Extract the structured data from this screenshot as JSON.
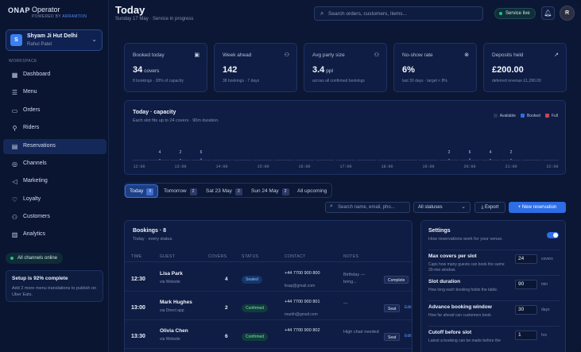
{
  "brand": {
    "logo": "ONAP",
    "name": "Operator",
    "powered": "POWERED BY",
    "powered_by": "ARRAMTON"
  },
  "store": {
    "initial": "S",
    "name": "Shyam Ji Hut Delhi",
    "owner": "Rahul Patel"
  },
  "sidebar": {
    "heading": "WORKSPACE",
    "items": [
      {
        "label": "Dashboard",
        "icon": "dashboard-icon",
        "glyph": "▦"
      },
      {
        "label": "Menu",
        "icon": "menu-icon",
        "glyph": "☰"
      },
      {
        "label": "Orders",
        "icon": "orders-icon",
        "glyph": "▭"
      },
      {
        "label": "Riders",
        "icon": "bike-icon",
        "glyph": "⚲"
      },
      {
        "label": "Reservations",
        "icon": "calendar-icon",
        "glyph": "▤"
      },
      {
        "label": "Channels",
        "icon": "channels-icon",
        "glyph": "◎"
      },
      {
        "label": "Marketing",
        "icon": "megaphone-icon",
        "glyph": "◁"
      },
      {
        "label": "Loyalty",
        "icon": "heart-icon",
        "glyph": "♡"
      },
      {
        "label": "Customers",
        "icon": "users-icon",
        "glyph": "⚇"
      },
      {
        "label": "Analytics",
        "icon": "analytics-icon",
        "glyph": "▥"
      }
    ],
    "active_index": 4,
    "online_badge": "All channels online",
    "setup_title": "Setup is 92% complete",
    "setup_text": "Add 2 more menu translations to publish on Uber Eats."
  },
  "header": {
    "title": "Today",
    "subtitle": "Sunday 17 May · Service in progress",
    "search_placeholder": "Search orders, customers, items...",
    "live_label": "Service live",
    "user_initial": "R"
  },
  "stats": [
    {
      "label": "Booked today",
      "icon": "calendar-check-icon",
      "glyph": "▣",
      "value": "34",
      "unit": "covers",
      "note": "8 bookings · 28% of capacity"
    },
    {
      "label": "Week ahead",
      "icon": "users-icon",
      "glyph": "⚇",
      "value": "142",
      "unit": "",
      "note": "38 bookings · 7 days"
    },
    {
      "label": "Avg party size",
      "icon": "users-icon",
      "glyph": "⚇",
      "value": "3.4",
      "unit": "ppl",
      "note": "across all confirmed bookings"
    },
    {
      "label": "No-show rate",
      "icon": "no-show-icon",
      "glyph": "⊗",
      "value": "6%",
      "unit": "",
      "note": "last 30 days · target < 8%"
    },
    {
      "label": "Deposits held",
      "icon": "trend-up-icon",
      "glyph": "↗",
      "value": "£200.00",
      "unit": "",
      "note": "deferred revenue £1,280.00"
    }
  ],
  "capacity": {
    "title": "Today · capacity",
    "subtitle": "Each slot fits up to 24 covers · 90m duration.",
    "legend": [
      {
        "label": "Available",
        "color": "#2a3558"
      },
      {
        "label": "Booked",
        "color": "#2d6de6"
      },
      {
        "label": "Full",
        "color": "#c8455a"
      }
    ]
  },
  "chart_data": {
    "type": "bar",
    "x": [
      "12:00",
      "12:30",
      "13:00",
      "13:30",
      "14:00",
      "14:30",
      "15:00",
      "15:30",
      "16:00",
      "16:30",
      "17:00",
      "17:30",
      "18:00",
      "18:30",
      "19:00",
      "19:30",
      "20:00",
      "20:30",
      "21:00",
      "21:30",
      "22:00"
    ],
    "values": [
      0,
      4,
      2,
      6,
      0,
      0,
      0,
      0,
      0,
      0,
      0,
      0,
      0,
      0,
      0,
      2,
      6,
      4,
      2,
      0,
      0
    ],
    "tick_labels": [
      "12:00",
      "13:00",
      "14:00",
      "15:00",
      "16:00",
      "17:00",
      "18:00",
      "19:00",
      "20:00",
      "21:00",
      "22:00"
    ],
    "ylim": [
      0,
      24
    ]
  },
  "tabs": [
    {
      "label": "Today",
      "count": "8"
    },
    {
      "label": "Tomorrow",
      "count": "2"
    },
    {
      "label": "Sat 23 May",
      "count": "2"
    },
    {
      "label": "Sun 24 May",
      "count": "2"
    },
    {
      "label": "All upcoming",
      "count": ""
    }
  ],
  "toolbar": {
    "search_placeholder": "Search name, email, pho...",
    "status_filter": "All statuses",
    "export_label": "Export",
    "new_label": "+ New reservation"
  },
  "bookings": {
    "title": "Bookings · 8",
    "subtitle": "Today · every status.",
    "columns": [
      "TIME",
      "GUEST",
      "COVERS",
      "STATUS",
      "CONTACT",
      "NOTES"
    ],
    "rows": [
      {
        "time": "12:30",
        "name": "Lisa Park",
        "via": "via Website",
        "covers": "4",
        "status": "Seated",
        "status_kind": "seated",
        "phone": "+44 7700 900 800",
        "email": "lisap@gmail.com",
        "notes": "Birthday — bring...",
        "action": "Complete",
        "edit": ""
      },
      {
        "time": "13:00",
        "name": "Mark Hughes",
        "via": "via Direct app",
        "covers": "2",
        "status": "Confirmed",
        "status_kind": "confirmed",
        "phone": "+44 7700 900 801",
        "email": "markh@gmail.com",
        "notes": "—",
        "action": "Seat",
        "edit": "Edit"
      },
      {
        "time": "13:30",
        "name": "Olivia Chen",
        "via": "via Website",
        "covers": "6",
        "status": "Confirmed",
        "status_kind": "confirmed",
        "phone": "+44 7700 900 802",
        "email": "",
        "notes": "High chair needed",
        "action": "Seat",
        "edit": "Edit"
      }
    ]
  },
  "settings": {
    "title": "Settings",
    "subtitle": "How reservations work for your venue.",
    "fields": [
      {
        "label": "Max covers per slot",
        "help": "Caps how many guests can book the same 30-min window.",
        "value": "24",
        "unit": "covers"
      },
      {
        "label": "Slot duration",
        "help": "How long each booking holds the table.",
        "value": "90",
        "unit": "min"
      },
      {
        "label": "Advance booking window",
        "help": "How far ahead can customers book.",
        "value": "30",
        "unit": "days"
      },
      {
        "label": "Cutoff before slot",
        "help": "Latest a booking can be made before the",
        "value": "1",
        "unit": "hrs"
      }
    ]
  }
}
